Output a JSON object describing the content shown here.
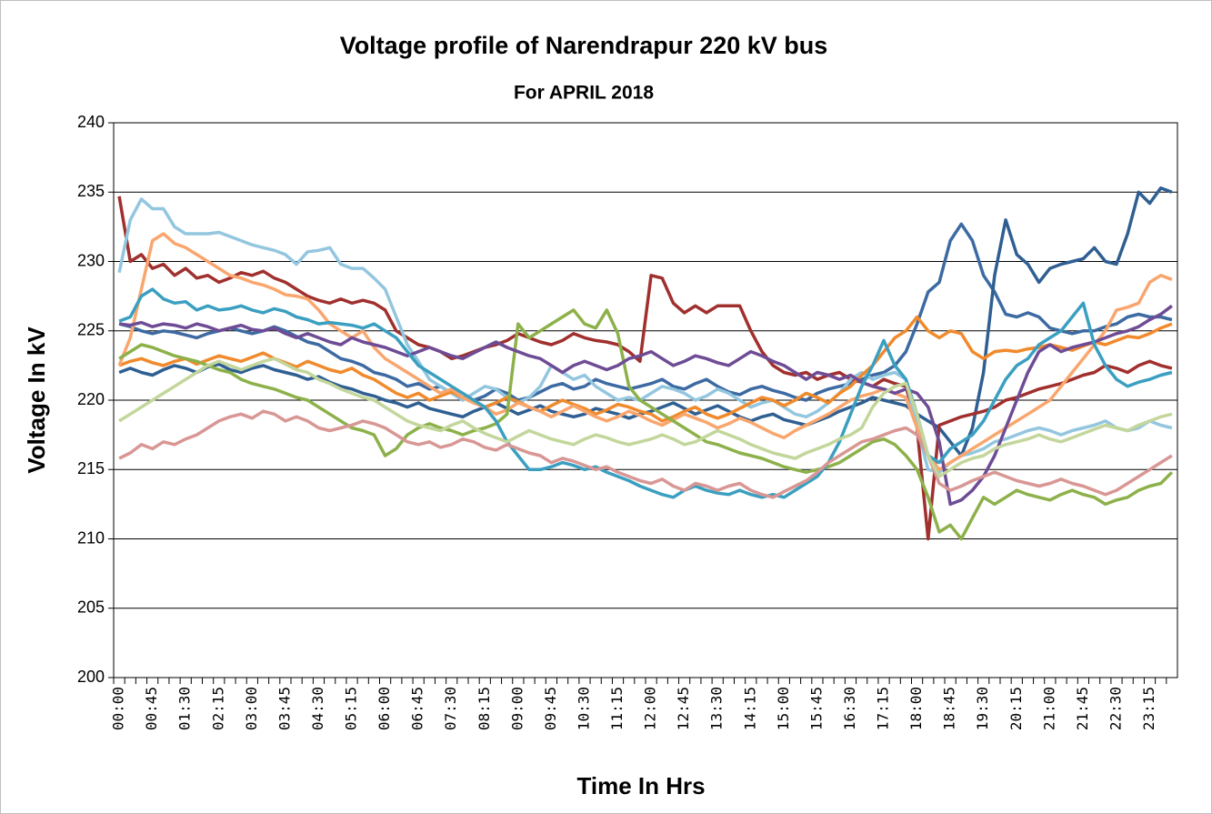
{
  "chart_data": {
    "type": "line",
    "title": "Voltage profile of Narendrapur 220 kV bus",
    "subtitle": "For APRIL 2018",
    "x_label": "Time In Hrs",
    "y_label": "Voltage In kV",
    "categories": [
      "00:00",
      null,
      null,
      "00:45",
      null,
      null,
      "01:30",
      null,
      null,
      "02:15",
      null,
      null,
      "03:00",
      null,
      null,
      "03:45",
      null,
      null,
      "04:30",
      null,
      null,
      "05:15",
      null,
      null,
      "06:00",
      null,
      null,
      "06:45",
      null,
      null,
      "07:30",
      null,
      null,
      "08:15",
      null,
      null,
      "09:00",
      null,
      null,
      "09:45",
      null,
      null,
      "10:30",
      null,
      null,
      "11:15",
      null,
      null,
      "12:00",
      null,
      null,
      "12:45",
      null,
      null,
      "13:30",
      null,
      null,
      "14:15",
      null,
      null,
      "15:00",
      null,
      null,
      "15:45",
      null,
      null,
      "16:30",
      null,
      null,
      "17:15",
      null,
      null,
      "18:00",
      null,
      null,
      "18:45",
      null,
      null,
      "19:30",
      null,
      null,
      "20:15",
      null,
      null,
      "21:00",
      null,
      null,
      "21:45",
      null,
      null,
      "22:30",
      null,
      null,
      "23:15",
      null,
      null
    ],
    "ylim": [
      200,
      240
    ],
    "yticks": [
      200,
      205,
      210,
      215,
      220,
      225,
      230,
      235,
      240
    ],
    "grid": true,
    "series": [
      {
        "color": "#3d6aa2",
        "values": [
          225.5,
          225.3,
          225,
          224.8,
          225,
          224.9,
          224.7,
          224.5,
          224.8,
          225,
          225.2,
          225,
          224.8,
          225,
          225.3,
          225,
          224.6,
          224.2,
          224,
          223.5,
          223,
          222.8,
          222.5,
          222,
          221.8,
          221.5,
          221,
          221.2,
          220.8,
          221,
          220.5,
          220.2,
          220,
          220.3,
          220.8,
          220.5,
          220,
          220.2,
          220.6,
          221,
          221.2,
          220.8,
          221,
          221.5,
          221.2,
          221,
          220.8,
          221,
          221.2,
          221.5,
          221,
          220.8,
          221.2,
          221.5,
          221,
          220.6,
          220.4,
          220.8,
          221,
          220.7,
          220.5,
          220.2,
          220,
          220.5,
          220.8,
          221,
          221.2,
          221.5,
          221.8,
          222,
          222.5,
          223.5,
          225.5,
          227.8,
          228.5,
          231.5,
          232.7,
          231.5,
          229,
          227.8,
          226.2,
          226,
          226.3,
          226,
          225.2,
          225,
          224.8,
          225,
          225,
          225.3,
          225.5,
          226,
          226.2,
          226,
          226,
          225.8
        ]
      },
      {
        "color": "#2f5f92",
        "values": [
          222,
          222.3,
          222,
          221.8,
          222.2,
          222.5,
          222.3,
          222,
          222.4,
          222.6,
          222.2,
          222,
          222.3,
          222.5,
          222.2,
          222,
          221.8,
          221.5,
          221.7,
          221.3,
          221,
          220.8,
          220.5,
          220.3,
          220,
          219.8,
          219.5,
          219.8,
          219.4,
          219.2,
          219,
          218.8,
          219.2,
          219.5,
          219.8,
          219.4,
          219,
          219.3,
          219.6,
          219.2,
          219,
          218.8,
          219,
          219.4,
          219.2,
          219,
          218.7,
          219,
          219.2,
          219.5,
          219.8,
          219.4,
          219,
          219.3,
          219.6,
          219.2,
          218.8,
          218.5,
          218.8,
          219,
          218.6,
          218.4,
          218.2,
          218.5,
          218.8,
          219.2,
          219.5,
          219.8,
          220.2,
          220,
          219.8,
          219.6,
          219,
          218.5,
          218,
          217,
          216,
          218,
          222,
          229,
          233,
          230.5,
          229.8,
          228.5,
          229.5,
          229.8,
          230,
          230.2,
          231,
          230,
          229.8,
          232,
          235,
          234.2,
          235.3,
          235
        ]
      },
      {
        "color": "#a0302e",
        "values": [
          234.7,
          230,
          230.5,
          229.5,
          229.8,
          229,
          229.5,
          228.8,
          229,
          228.5,
          228.8,
          229.2,
          229,
          229.3,
          228.8,
          228.5,
          228,
          227.5,
          227.2,
          227,
          227.3,
          227,
          227.2,
          227,
          226.5,
          225,
          224.5,
          224,
          223.8,
          223.5,
          223,
          223.2,
          223.5,
          223.8,
          224,
          224.3,
          224.8,
          224.5,
          224.2,
          224,
          224.3,
          224.8,
          224.5,
          224.3,
          224.2,
          224,
          223.5,
          222.8,
          229,
          228.8,
          227,
          226.3,
          226.8,
          226.3,
          226.8,
          226.8,
          226.8,
          225,
          223.5,
          222.5,
          222,
          221.8,
          222,
          221.5,
          221.8,
          222,
          221.5,
          221.3,
          221,
          221.5,
          221.2,
          221,
          218,
          210,
          218.2,
          218.5,
          218.8,
          219,
          219.2,
          219.5,
          220,
          220.2,
          220.5,
          220.8,
          221,
          221.2,
          221.5,
          221.8,
          222,
          222.5,
          222.3,
          222,
          222.5,
          222.8,
          222.5,
          222.3
        ]
      },
      {
        "color": "#93c6df",
        "values": [
          229.2,
          233,
          234.5,
          233.8,
          233.8,
          232.5,
          232,
          232,
          232,
          232.1,
          231.8,
          231.5,
          231.2,
          231,
          230.8,
          230.5,
          229.8,
          230.7,
          230.8,
          231,
          229.8,
          229.5,
          229.5,
          228.8,
          228,
          226,
          224,
          222.8,
          221.5,
          221,
          220.5,
          220,
          220.5,
          221,
          220.8,
          220.2,
          219.8,
          220.2,
          221,
          222.5,
          222,
          221.5,
          221.8,
          221,
          220.5,
          220,
          220.2,
          220,
          220.5,
          221,
          220.8,
          220.5,
          220,
          220.3,
          220.8,
          220.5,
          220,
          219.5,
          219.8,
          220,
          219.5,
          219,
          218.8,
          219.2,
          219.8,
          220.5,
          221.5,
          222,
          221.5,
          221.8,
          222,
          221.5,
          218,
          215,
          214.8,
          215.5,
          216,
          216.2,
          216.5,
          217,
          217.2,
          217.5,
          217.8,
          218,
          217.8,
          217.5,
          217.8,
          218,
          218.2,
          218.5,
          218,
          217.8,
          218,
          218.5,
          218.2,
          218
        ]
      },
      {
        "color": "#f08a2c",
        "values": [
          222.5,
          222.8,
          223,
          222.7,
          222.5,
          222.8,
          223,
          222.6,
          222.9,
          223.2,
          223,
          222.8,
          223.1,
          223.4,
          223,
          222.7,
          222.4,
          222.8,
          222.5,
          222.2,
          222,
          222.3,
          221.8,
          221.5,
          221,
          220.5,
          220.2,
          220.5,
          220,
          220.3,
          220.6,
          220.2,
          219.8,
          219.5,
          219.8,
          220.2,
          219.9,
          219.5,
          219.2,
          219.6,
          220,
          219.7,
          219.4,
          219,
          219.3,
          219.7,
          219.5,
          219.2,
          219,
          218.5,
          218.8,
          219.2,
          219.5,
          219,
          218.7,
          219,
          219.4,
          219.8,
          220.2,
          220,
          219.6,
          220,
          220.5,
          220.2,
          219.8,
          220.5,
          221,
          221.8,
          222.5,
          223.5,
          224.5,
          225,
          226,
          225,
          224.5,
          225,
          224.8,
          223.5,
          223,
          223.5,
          223.6,
          223.5,
          223.7,
          223.8,
          224,
          223.8,
          223.6,
          223.9,
          224.2,
          224,
          224.3,
          224.6,
          224.5,
          224.8,
          225.2,
          225.5
        ]
      },
      {
        "color": "#f9a66e",
        "values": [
          222.5,
          224.5,
          228,
          231.5,
          232,
          231.3,
          231,
          230.5,
          230,
          229.5,
          229,
          228.8,
          228.5,
          228.3,
          228,
          227.6,
          227.5,
          227.3,
          226.5,
          225.5,
          225,
          224.5,
          225,
          223.8,
          223,
          222.5,
          222,
          221.5,
          221,
          220.5,
          220.8,
          220.2,
          219.8,
          219.5,
          219,
          219.3,
          219.8,
          219.5,
          219.2,
          218.8,
          219.2,
          219.6,
          219.2,
          218.8,
          218.5,
          218.8,
          219.2,
          218.9,
          218.5,
          218.2,
          218.6,
          219,
          218.7,
          218.4,
          218,
          218.3,
          218.7,
          218.4,
          218,
          217.6,
          217.3,
          217.8,
          218.2,
          218.6,
          219,
          219.5,
          220,
          220.3,
          220.5,
          220.8,
          220.5,
          220.2,
          218,
          216,
          215,
          215.5,
          216,
          216.5,
          217,
          217.5,
          218,
          218.5,
          219,
          219.5,
          220,
          221,
          222,
          223,
          224,
          225,
          226.5,
          226.7,
          227,
          228.5,
          229,
          228.7
        ]
      },
      {
        "color": "#8db14a",
        "values": [
          223,
          223.5,
          224,
          223.8,
          223.5,
          223.2,
          223,
          222.8,
          222.5,
          222.2,
          222,
          221.5,
          221.2,
          221,
          220.8,
          220.5,
          220.2,
          220,
          219.5,
          219,
          218.5,
          218,
          217.8,
          217.5,
          216,
          216.5,
          217.5,
          218,
          218.3,
          218,
          217.8,
          217.5,
          217.8,
          218,
          218.3,
          219,
          225.5,
          224.5,
          225,
          225.5,
          226,
          226.5,
          225.5,
          225.2,
          226.5,
          224.8,
          221,
          220,
          219.5,
          219,
          218.5,
          218,
          217.5,
          217,
          216.8,
          216.5,
          216.2,
          216,
          215.8,
          215.5,
          215.2,
          215,
          214.8,
          215,
          215.2,
          215.5,
          216,
          216.5,
          217,
          217.2,
          216.8,
          216,
          215,
          213,
          210.5,
          211,
          210,
          211.5,
          213,
          212.5,
          213,
          213.5,
          213.2,
          213,
          212.8,
          213.2,
          213.5,
          213.2,
          213,
          212.5,
          212.8,
          213,
          213.5,
          213.8,
          214,
          214.8
        ]
      },
      {
        "color": "#6e4c95",
        "values": [
          225.5,
          225.4,
          225.6,
          225.3,
          225.5,
          225.4,
          225.2,
          225.5,
          225.3,
          225,
          225.2,
          225.4,
          225.1,
          225,
          225.2,
          224.8,
          224.5,
          224.8,
          224.5,
          224.2,
          224,
          224.5,
          224.2,
          224,
          223.8,
          223.5,
          223.2,
          223.5,
          223.8,
          223.5,
          223.2,
          223,
          223.4,
          223.8,
          224.2,
          223.8,
          223.5,
          223.2,
          223,
          222.5,
          222,
          222.5,
          222.8,
          222.5,
          222.2,
          222.5,
          223,
          223.2,
          223.5,
          223,
          222.5,
          222.8,
          223.2,
          223,
          222.7,
          222.5,
          223,
          223.5,
          223.2,
          222.8,
          222.5,
          222,
          221.5,
          222,
          221.8,
          221.5,
          221.8,
          221.3,
          221,
          220.8,
          220.5,
          220.8,
          220.5,
          219.5,
          217,
          212.5,
          212.8,
          213.5,
          214.5,
          216,
          218,
          220,
          222,
          223.5,
          224,
          223.5,
          223.8,
          224,
          224.2,
          224.5,
          224.8,
          225,
          225.3,
          225.8,
          226.2,
          226.8
        ]
      },
      {
        "color": "#3a9fc0",
        "values": [
          225.7,
          226,
          227.5,
          228,
          227.3,
          227,
          227.1,
          226.5,
          226.8,
          226.5,
          226.6,
          226.8,
          226.5,
          226.3,
          226.6,
          226.4,
          226,
          225.8,
          225.5,
          225.6,
          225.5,
          225.4,
          225.2,
          225.5,
          225,
          224.5,
          223.5,
          222.5,
          222,
          221.5,
          221,
          220.5,
          220,
          219.5,
          218.5,
          217,
          216,
          215,
          215,
          215.2,
          215.5,
          215.3,
          215,
          215.2,
          214.8,
          214.5,
          214.2,
          213.8,
          213.5,
          213.2,
          213,
          213.5,
          213.8,
          213.5,
          213.3,
          213.2,
          213.5,
          213.2,
          213,
          213.2,
          213,
          213.5,
          214,
          214.5,
          215.5,
          217,
          219,
          221,
          222.5,
          224.3,
          222.5,
          221.5,
          219,
          216,
          215.5,
          216.5,
          217,
          217.5,
          218.5,
          220,
          221.5,
          222.5,
          223,
          224,
          224.5,
          225,
          226,
          227,
          224,
          222.5,
          221.5,
          221,
          221.3,
          221.5,
          221.8,
          222
        ]
      },
      {
        "color": "#d89794",
        "values": [
          215.8,
          216.2,
          216.8,
          216.5,
          217,
          216.8,
          217.2,
          217.5,
          218,
          218.5,
          218.8,
          219,
          218.7,
          219.2,
          219,
          218.5,
          218.8,
          218.5,
          218,
          217.8,
          218,
          218.2,
          218.5,
          218.3,
          218,
          217.5,
          217,
          216.8,
          217,
          216.6,
          216.8,
          217.2,
          217,
          216.6,
          216.4,
          216.8,
          216.5,
          216.2,
          216,
          215.5,
          215.8,
          215.6,
          215.3,
          215,
          215.2,
          214.8,
          214.5,
          214.2,
          214,
          214.3,
          213.8,
          213.5,
          214,
          213.8,
          213.5,
          213.8,
          214,
          213.5,
          213.2,
          213,
          213.4,
          213.8,
          214.2,
          214.8,
          215.5,
          216,
          216.5,
          217,
          217.2,
          217.5,
          217.8,
          218,
          217.5,
          216,
          214,
          213.5,
          213.8,
          214.2,
          214.5,
          214.8,
          214.5,
          214.2,
          214,
          213.8,
          214,
          214.3,
          214,
          213.8,
          213.5,
          213.2,
          213.5,
          214,
          214.5,
          215,
          215.5,
          216
        ]
      },
      {
        "color": "#c3d69b",
        "values": [
          218.5,
          219,
          219.5,
          220,
          220.5,
          221,
          221.5,
          222,
          222.5,
          222.8,
          222.5,
          222.2,
          222.5,
          222.8,
          223,
          222.6,
          222.2,
          222,
          221.5,
          221.2,
          220.8,
          220.5,
          220.2,
          220,
          219.5,
          219,
          218.5,
          218.2,
          218,
          217.8,
          218.2,
          218.5,
          218,
          217.6,
          217.3,
          217,
          217.4,
          217.8,
          217.5,
          217.2,
          217,
          216.8,
          217.2,
          217.5,
          217.3,
          217,
          216.8,
          217,
          217.2,
          217.5,
          217.2,
          216.8,
          217,
          217.4,
          217.8,
          217.5,
          217.2,
          216.8,
          216.5,
          216.2,
          216,
          215.8,
          216.2,
          216.5,
          216.8,
          217.2,
          217.5,
          218,
          219.5,
          220.5,
          221,
          221.2,
          219,
          216,
          214.5,
          215,
          215.5,
          215.8,
          216,
          216.5,
          216.8,
          217,
          217.2,
          217.5,
          217.2,
          217,
          217.3,
          217.6,
          217.9,
          218.2,
          218,
          217.8,
          218.2,
          218.5,
          218.8,
          219
        ]
      }
    ]
  }
}
